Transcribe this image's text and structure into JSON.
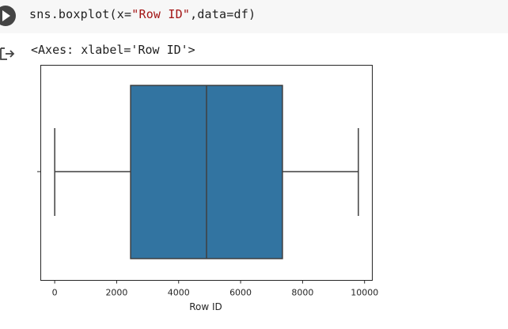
{
  "code_cell": {
    "code_prefix": "sns.boxplot(x=",
    "code_string1": "\"Row ID\"",
    "code_suffix": ",data=df)"
  },
  "output": {
    "text": "<Axes: xlabel='Row ID'>"
  },
  "colors": {
    "box_fill": "#3274a1",
    "line": "#3f3f3f"
  },
  "icons": {
    "run": "play-icon",
    "output": "output-arrow-icon"
  },
  "chart_data": {
    "type": "boxplot",
    "title": "",
    "xlabel": "Row ID",
    "ylabel": "",
    "xlim": [
      -450,
      10250
    ],
    "xticks": [
      0,
      2000,
      4000,
      6000,
      8000,
      10000
    ],
    "grid": false,
    "legend": "none",
    "box": {
      "whisker_low": 1,
      "q1": 2450,
      "median": 4900,
      "q3": 7350,
      "whisker_high": 9800
    }
  }
}
